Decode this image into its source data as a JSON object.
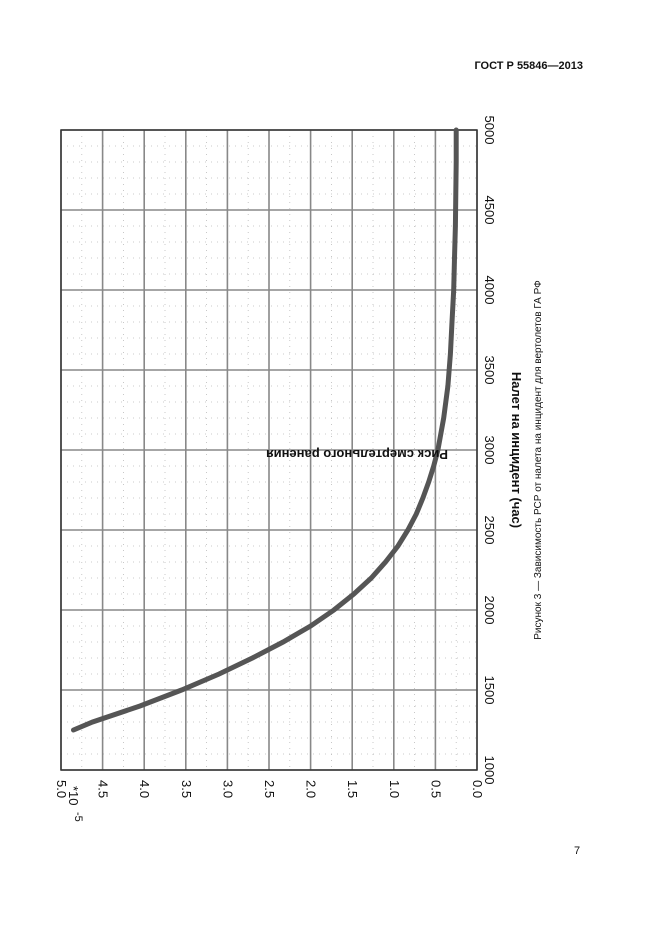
{
  "document": {
    "standard": "ГОСТ Р 55846—2013",
    "page_number": "7",
    "caption": "Рисунок 3 — Зависимость РСР от налета на инцидент для вертолетов ГА РФ"
  },
  "chart_data": {
    "type": "line",
    "title": "",
    "xlabel": "Налет на инцидент (час)",
    "ylabel": "Риск смертельного ранения",
    "y_multiplier_label": "*10",
    "y_multiplier_exp": "-5",
    "xlim": [
      1000,
      5000
    ],
    "ylim": [
      0.0,
      5.0
    ],
    "x_ticks": [
      "1000",
      "1500",
      "2000",
      "2500",
      "3000",
      "3500",
      "4000",
      "4500",
      "5000"
    ],
    "y_ticks": [
      "0.0",
      "0.5",
      "1.0",
      "1.5",
      "2.0",
      "2.5",
      "3.0",
      "3.5",
      "4.0",
      "4.5",
      "5.0"
    ],
    "grid": true,
    "orientation": "rotated-90-clockwise",
    "series": [
      {
        "color": "#555555",
        "x": [
          1250,
          1300,
          1400,
          1500,
          1600,
          1700,
          1800,
          1900,
          2000,
          2100,
          2200,
          2300,
          2400,
          2500,
          2600,
          2700,
          2800,
          2900,
          3000,
          3200,
          3400,
          3600,
          3800,
          4000,
          4200,
          4400,
          4600,
          4800,
          5000
        ],
        "y": [
          4.85,
          4.62,
          4.05,
          3.55,
          3.1,
          2.7,
          2.33,
          2.0,
          1.72,
          1.48,
          1.27,
          1.1,
          0.95,
          0.83,
          0.73,
          0.65,
          0.58,
          0.52,
          0.47,
          0.4,
          0.35,
          0.32,
          0.3,
          0.28,
          0.27,
          0.26,
          0.255,
          0.25,
          0.25
        ]
      }
    ]
  }
}
